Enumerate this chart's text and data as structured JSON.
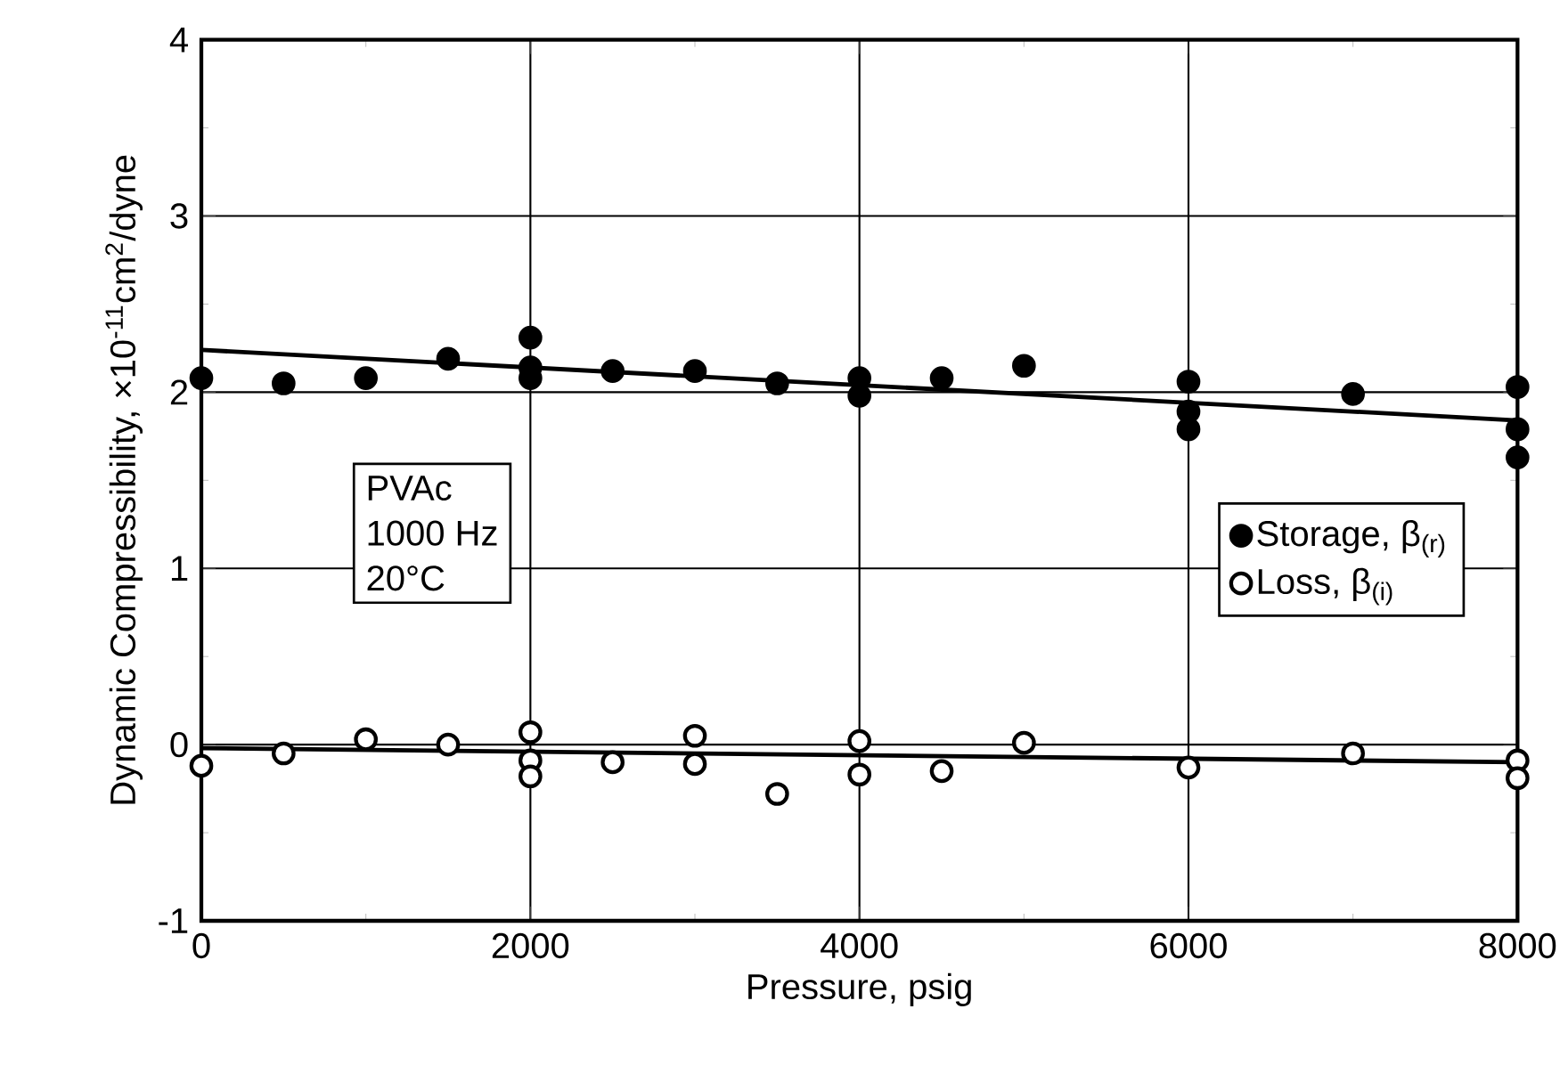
{
  "chart_data": {
    "type": "scatter",
    "xlabel": "Pressure, psig",
    "ylabel": "Dynamic Compressibility, ×10$^{-11}$cm$^{2}$/dyne",
    "xlim": [
      0,
      8000
    ],
    "ylim": [
      -1,
      4
    ],
    "xticks": [
      0,
      2000,
      4000,
      6000,
      8000
    ],
    "yticks": [
      -1,
      0,
      1,
      2,
      3,
      4
    ],
    "grid": true,
    "legend": "right",
    "annotations": [
      "PVAc",
      "1000 Hz",
      "20°C"
    ],
    "series": [
      {
        "name": "Storage, β$_{(r)}$",
        "color": "#000000",
        "marker": "circle",
        "x": [
          0,
          500,
          1000,
          1500,
          2000,
          2000,
          2000,
          2500,
          3000,
          3500,
          4000,
          4000,
          4500,
          5000,
          6000,
          6000,
          6000,
          7000,
          8000,
          8000,
          8000
        ],
        "values": [
          2.08,
          2.05,
          2.08,
          2.19,
          2.31,
          2.14,
          2.08,
          2.12,
          2.12,
          2.05,
          2.08,
          1.98,
          2.08,
          2.15,
          2.06,
          1.89,
          1.79,
          1.99,
          2.03,
          1.79,
          1.63
        ]
      },
      {
        "name": "Loss, β$_{(i)}$",
        "color": "#000000",
        "marker": "open circle",
        "x": [
          0,
          500,
          1000,
          1500,
          2000,
          2000,
          2000,
          2500,
          3000,
          3000,
          3500,
          4000,
          4000,
          4500,
          5000,
          6000,
          7000,
          8000,
          8000
        ],
        "values": [
          -0.12,
          -0.05,
          0.03,
          0.0,
          0.07,
          -0.09,
          -0.18,
          -0.1,
          0.05,
          -0.11,
          -0.28,
          0.02,
          -0.17,
          -0.15,
          0.01,
          -0.13,
          -0.05,
          -0.09,
          -0.19
        ]
      },
      {
        "type": "line",
        "color": "#000000",
        "x": [
          0,
          8000
        ],
        "values": [
          2.24,
          1.84
        ]
      },
      {
        "type": "line",
        "color": "#000000",
        "x": [
          0,
          8000
        ],
        "values": [
          -0.02,
          -0.1
        ]
      }
    ]
  }
}
